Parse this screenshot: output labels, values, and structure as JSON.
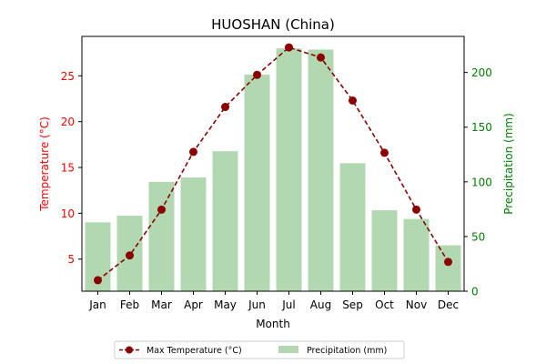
{
  "chart_data": {
    "type": "bar+line",
    "title": "HUOSHAN (China)",
    "xlabel": "Month",
    "ylabel_left": "Temperature (°C)",
    "ylabel_right": "Precipitation (mm)",
    "categories": [
      "Jan",
      "Feb",
      "Mar",
      "Apr",
      "May",
      "Jun",
      "Jul",
      "Aug",
      "Sep",
      "Oct",
      "Nov",
      "Dec"
    ],
    "ylim_left": [
      1.5,
      29.3
    ],
    "ylim_right": [
      0,
      233
    ],
    "yticks_left": [
      5,
      10,
      15,
      20,
      25
    ],
    "yticks_right": [
      0,
      50,
      100,
      150,
      200
    ],
    "series": [
      {
        "name": "Max Temperature (°C)",
        "kind": "line",
        "axis": "left",
        "color": "#8b0000",
        "values": [
          2.7,
          5.4,
          10.4,
          16.7,
          21.6,
          25.1,
          28.1,
          27.0,
          22.3,
          16.6,
          10.4,
          4.7
        ]
      },
      {
        "name": "Precipitation (mm)",
        "kind": "bar",
        "axis": "right",
        "color": "#b2d8b2",
        "values": [
          63,
          69,
          100,
          104,
          128,
          198,
          222,
          221,
          117,
          74,
          66,
          42
        ]
      }
    ],
    "left_axis_color": "#ff0000",
    "right_axis_color": "#008000",
    "legend_position": "bottom-center",
    "grid": false
  }
}
